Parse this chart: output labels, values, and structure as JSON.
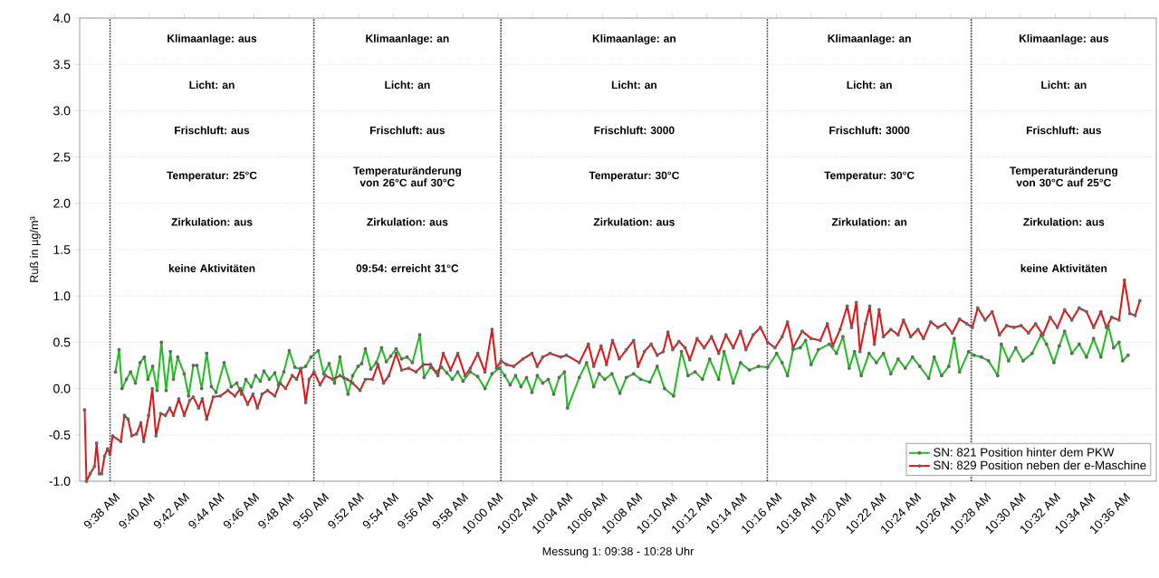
{
  "chart_data": {
    "type": "line",
    "xlabel": "Messung 1: 09:38 - 10:28 Uhr",
    "ylabel": "Ruß in µg/m³",
    "xlim": [
      9.6,
      10.63
    ],
    "ylim": [
      -1.0,
      4.0
    ],
    "xticks": [
      {
        "value": 9.6333,
        "label": "9:38 AM"
      },
      {
        "value": 9.6667,
        "label": "9:40 AM"
      },
      {
        "value": 9.7,
        "label": "9:42 AM"
      },
      {
        "value": 9.7333,
        "label": "9:44 AM"
      },
      {
        "value": 9.7667,
        "label": "9:46 AM"
      },
      {
        "value": 9.8,
        "label": "9:48 AM"
      },
      {
        "value": 9.8333,
        "label": "9:50 AM"
      },
      {
        "value": 9.8667,
        "label": "9:52 AM"
      },
      {
        "value": 9.9,
        "label": "9:54 AM"
      },
      {
        "value": 9.9333,
        "label": "9:56 AM"
      },
      {
        "value": 9.9667,
        "label": "9:58 AM"
      },
      {
        "value": 10.0,
        "label": "10:00 AM"
      },
      {
        "value": 10.0333,
        "label": "10:02 AM"
      },
      {
        "value": 10.0667,
        "label": "10:04 AM"
      },
      {
        "value": 10.1,
        "label": "10:06 AM"
      },
      {
        "value": 10.1333,
        "label": "10:08 AM"
      },
      {
        "value": 10.1667,
        "label": "10:10 AM"
      },
      {
        "value": 10.2,
        "label": "10:12 AM"
      },
      {
        "value": 10.2333,
        "label": "10:14 AM"
      },
      {
        "value": 10.2667,
        "label": "10:16 AM"
      },
      {
        "value": 10.3,
        "label": "10:18 AM"
      },
      {
        "value": 10.3333,
        "label": "10:20 AM"
      },
      {
        "value": 10.3667,
        "label": "10:22 AM"
      },
      {
        "value": 10.4,
        "label": "10:24 AM"
      },
      {
        "value": 10.4333,
        "label": "10:26 AM"
      },
      {
        "value": 10.4667,
        "label": "10:28 AM"
      },
      {
        "value": 10.5,
        "label": "10:30 AM"
      },
      {
        "value": 10.5333,
        "label": "10:32 AM"
      },
      {
        "value": 10.5667,
        "label": "10:34 AM"
      },
      {
        "value": 10.6,
        "label": "10:36 AM"
      }
    ],
    "yticks": [
      {
        "value": -1.0,
        "label": "-1.0"
      },
      {
        "value": -0.5,
        "label": "-0.5"
      },
      {
        "value": 0.0,
        "label": "0.0"
      },
      {
        "value": 0.5,
        "label": "0.5"
      },
      {
        "value": 1.0,
        "label": "1.0"
      },
      {
        "value": 1.5,
        "label": "1.5"
      },
      {
        "value": 2.0,
        "label": "2.0"
      },
      {
        "value": 2.5,
        "label": "2.5"
      },
      {
        "value": 3.0,
        "label": "3.0"
      },
      {
        "value": 3.5,
        "label": "3.5"
      },
      {
        "value": 4.0,
        "label": "4.0"
      }
    ],
    "grid": "y",
    "legend": "bottom right",
    "marker": "circle",
    "line_style": "solid",
    "series": [
      {
        "name": "SN: 821 Position hinter dem PKW",
        "color": "#22bb22",
        "x": [
          9.6342,
          9.6377,
          9.6405,
          9.6447,
          9.6487,
          9.6533,
          9.6578,
          9.6618,
          9.6653,
          9.6698,
          9.674,
          9.6782,
          9.6827,
          9.6868,
          9.6897,
          9.6938,
          9.7,
          9.7042,
          9.7087,
          9.7122,
          9.7167,
          9.7215,
          9.726,
          9.7305,
          9.7382,
          9.745,
          9.7503,
          9.7548,
          9.759,
          9.7642,
          9.7683,
          9.7728,
          9.7763,
          9.7815,
          9.7867,
          9.7902,
          9.7953,
          9.8005,
          9.8058,
          9.811,
          9.8162,
          9.8213,
          9.8282,
          9.8335,
          9.8387,
          9.8438,
          9.849,
          9.8525,
          9.8567,
          9.8612,
          9.8663,
          9.8698,
          9.8733,
          9.8785,
          9.8837,
          9.8888,
          9.8933,
          9.8975,
          9.9028,
          9.908,
          9.9132,
          9.9183,
          9.9253,
          9.9295,
          9.9357,
          9.9408,
          9.9462,
          9.9513,
          9.9565,
          9.9617,
          9.9668,
          9.9738,
          9.9808,
          9.9877,
          9.9945,
          10.0015,
          10.0067,
          10.0118,
          10.017,
          10.0222,
          10.0275,
          10.0327,
          10.0378,
          10.043,
          10.0483,
          10.0535,
          10.0587,
          10.0638,
          10.0667,
          10.078,
          10.085,
          10.0918,
          10.097,
          10.1023,
          10.1092,
          10.1168,
          10.123,
          10.13,
          10.1368,
          10.1455,
          10.1525,
          10.1595,
          10.1682,
          10.1757,
          10.182,
          10.1888,
          10.1958,
          10.2027,
          10.2113,
          10.2165,
          10.2253,
          10.2322,
          10.2408,
          10.2495,
          10.2582,
          10.2668,
          10.272,
          10.2772,
          10.2825,
          10.2893,
          10.2945,
          10.2998,
          10.3067,
          10.3172,
          10.324,
          10.3302,
          10.3362,
          10.3413,
          10.3477,
          10.3552,
          10.3622,
          10.369,
          10.376,
          10.383,
          10.3898,
          10.3968,
          10.4037,
          10.4123,
          10.4175,
          10.4245,
          10.4315,
          10.4367,
          10.4418,
          10.4505,
          10.4557,
          10.4627,
          10.4695,
          10.4782,
          10.4817,
          10.4887,
          10.4955,
          10.5025,
          10.5112,
          10.5198,
          10.525,
          10.532,
          10.5372,
          10.5423,
          10.5492,
          10.5562,
          10.5632,
          10.57,
          10.577,
          10.584,
          10.5892,
          10.5943,
          10.5978,
          10.603
        ],
        "values": [
          0.18,
          0.42,
          0.0,
          0.1,
          0.18,
          0.06,
          0.28,
          0.34,
          0.1,
          0.24,
          -0.02,
          0.5,
          -0.02,
          0.4,
          0.1,
          0.34,
          0.16,
          -0.08,
          0.25,
          0.25,
          0.0,
          0.38,
          0.02,
          -0.04,
          0.28,
          0.02,
          0.06,
          -0.06,
          0.1,
          0.02,
          0.14,
          0.08,
          0.19,
          0.1,
          0.17,
          0.04,
          0.18,
          0.41,
          0.23,
          0.21,
          0.24,
          0.34,
          0.41,
          0.16,
          0.27,
          0.06,
          0.34,
          0.12,
          -0.06,
          0.14,
          0.24,
          0.27,
          0.43,
          0.21,
          0.28,
          0.44,
          0.29,
          0.35,
          0.43,
          0.32,
          0.34,
          0.28,
          0.58,
          0.12,
          0.23,
          0.18,
          0.23,
          0.17,
          0.1,
          0.18,
          0.08,
          0.18,
          0.13,
          0.0,
          0.16,
          0.22,
          0.14,
          0.04,
          0.14,
          0.02,
          0.12,
          -0.04,
          0.14,
          0.06,
          0.1,
          -0.06,
          0.12,
          0.18,
          -0.21,
          0.12,
          0.28,
          0.02,
          0.16,
          0.1,
          0.16,
          -0.05,
          0.12,
          0.16,
          0.1,
          0.07,
          0.24,
          0.0,
          -0.08,
          0.4,
          0.14,
          0.18,
          0.1,
          0.32,
          0.1,
          0.4,
          0.06,
          0.28,
          0.2,
          0.24,
          0.23,
          0.38,
          0.28,
          0.14,
          0.42,
          0.44,
          0.52,
          0.26,
          0.42,
          0.48,
          0.38,
          0.56,
          0.22,
          0.4,
          0.14,
          0.38,
          0.28,
          0.38,
          0.16,
          0.32,
          0.22,
          0.34,
          0.24,
          0.11,
          0.34,
          0.14,
          0.24,
          0.54,
          0.18,
          0.4,
          0.36,
          0.34,
          0.3,
          0.14,
          0.48,
          0.3,
          0.44,
          0.3,
          0.38,
          0.58,
          0.48,
          0.28,
          0.46,
          0.62,
          0.38,
          0.48,
          0.34,
          0.54,
          0.34,
          0.68,
          0.44,
          0.5,
          0.3,
          0.36
        ]
      },
      {
        "name": "SN: 829 Position neben der e-Maschine",
        "color": "#e01414",
        "x": [
          9.6047,
          9.6065,
          9.61,
          9.6142,
          9.6162,
          9.6187,
          9.621,
          9.6238,
          9.6267,
          9.629,
          9.6315,
          9.6393,
          9.6428,
          9.6463,
          9.6498,
          9.6543,
          9.6585,
          9.6612,
          9.666,
          9.6695,
          9.673,
          9.6775,
          9.682,
          9.6862,
          9.6897,
          9.6948,
          9.7,
          9.7052,
          9.7087,
          9.7138,
          9.7173,
          9.7215,
          9.7278,
          9.7347,
          9.7417,
          9.7485,
          9.7537,
          9.7607,
          9.7658,
          9.77,
          9.7745,
          9.7797,
          9.7867,
          9.7918,
          9.797,
          9.8033,
          9.8075,
          9.8117,
          9.8162,
          9.8195,
          9.8242,
          9.83,
          9.8352,
          9.8422,
          9.849,
          9.856,
          9.8612,
          9.8682,
          9.8733,
          9.8802,
          9.8853,
          9.8907,
          9.8958,
          9.9028,
          9.908,
          9.9148,
          9.9218,
          9.9288,
          9.9357,
          9.9427,
          9.9478,
          9.9548,
          9.9617,
          9.9687,
          9.9738,
          9.9808,
          9.9877,
          9.9945,
          9.9987,
          10.0032,
          10.0083,
          10.0153,
          10.024,
          10.0327,
          10.0378,
          10.043,
          10.05,
          10.0603,
          10.0655,
          10.078,
          10.0867,
          10.0918,
          10.0988,
          10.104,
          10.1098,
          10.1162,
          10.123,
          10.13,
          10.1342,
          10.1403,
          10.1467,
          10.1525,
          10.1583,
          10.1628,
          10.1673,
          10.1733,
          10.1792,
          10.1837,
          10.1907,
          10.1975,
          10.2045,
          10.2113,
          10.2183,
          10.2253,
          10.2322,
          10.2373,
          10.2443,
          10.2513,
          10.2582,
          10.2652,
          10.272,
          10.2772,
          10.2825,
          10.2912,
          10.2998,
          10.3085,
          10.3153,
          10.3205,
          10.3275,
          10.3343,
          10.3385,
          10.343,
          10.3465,
          10.3517,
          10.3558,
          10.3603,
          10.3648,
          10.369,
          10.376,
          10.383,
          10.3882,
          10.395,
          10.402,
          10.4072,
          10.4142,
          10.421,
          10.428,
          10.4348,
          10.4418,
          10.4487,
          10.454,
          10.4592,
          10.4662,
          10.473,
          10.48,
          10.4868,
          10.4938,
          10.5007,
          10.5077,
          10.5145,
          10.5215,
          10.5285,
          10.5353,
          10.5423,
          10.5492,
          10.5562,
          10.5632,
          10.57,
          10.577,
          10.5822,
          10.5873,
          10.5943,
          10.5995,
          10.6047,
          10.6098,
          10.6143
        ],
        "values": [
          -0.23,
          -1.0,
          -0.92,
          -0.84,
          -0.59,
          -0.92,
          -0.92,
          -0.73,
          -0.65,
          -0.71,
          -0.51,
          -0.57,
          -0.29,
          -0.33,
          -0.51,
          -0.49,
          -0.37,
          -0.57,
          -0.29,
          0.0,
          -0.51,
          -0.27,
          -0.29,
          -0.21,
          -0.29,
          -0.11,
          -0.29,
          -0.13,
          -0.09,
          -0.21,
          -0.11,
          -0.33,
          -0.09,
          -0.08,
          -0.02,
          -0.08,
          0.0,
          -0.17,
          -0.06,
          -0.21,
          -0.06,
          -0.02,
          -0.08,
          0.06,
          0.0,
          0.14,
          0.1,
          0.22,
          -0.15,
          0.1,
          0.18,
          0.04,
          0.14,
          0.1,
          0.14,
          0.1,
          0.06,
          -0.02,
          0.1,
          0.1,
          0.26,
          0.06,
          0.14,
          0.38,
          0.2,
          0.22,
          0.18,
          0.26,
          0.26,
          0.14,
          0.38,
          0.2,
          0.38,
          0.14,
          0.22,
          0.38,
          0.18,
          0.64,
          0.22,
          0.3,
          0.26,
          0.24,
          0.32,
          0.38,
          0.24,
          0.34,
          0.38,
          0.34,
          0.36,
          0.28,
          0.48,
          0.24,
          0.46,
          0.26,
          0.52,
          0.32,
          0.42,
          0.52,
          0.24,
          0.4,
          0.48,
          0.36,
          0.4,
          0.61,
          0.42,
          0.51,
          0.44,
          0.31,
          0.54,
          0.44,
          0.56,
          0.38,
          0.58,
          0.44,
          0.62,
          0.42,
          0.58,
          0.66,
          0.5,
          0.44,
          0.56,
          0.72,
          0.44,
          0.62,
          0.54,
          0.52,
          0.7,
          0.46,
          0.64,
          0.89,
          0.66,
          0.93,
          0.4,
          0.7,
          0.89,
          0.48,
          0.85,
          0.56,
          0.64,
          0.58,
          0.74,
          0.56,
          0.64,
          0.54,
          0.72,
          0.66,
          0.7,
          0.6,
          0.75,
          0.7,
          0.66,
          0.87,
          0.74,
          0.83,
          0.58,
          0.68,
          0.66,
          0.68,
          0.6,
          0.7,
          0.58,
          0.77,
          0.66,
          0.85,
          0.74,
          0.87,
          0.83,
          0.66,
          0.83,
          0.66,
          0.77,
          0.74,
          1.17,
          0.81,
          0.79,
          0.95
        ]
      }
    ],
    "ref_lines": [
      {
        "axis": "x",
        "value": 9.629,
        "line_style": "dotted"
      },
      {
        "axis": "x",
        "value": 9.824,
        "line_style": "dotted"
      },
      {
        "axis": "x",
        "value": 10.003,
        "line_style": "dotted"
      },
      {
        "axis": "x",
        "value": 10.258,
        "line_style": "dotted"
      },
      {
        "axis": "x",
        "value": 10.453,
        "line_style": "dotted"
      }
    ],
    "annotations": [
      "Klimaanlage: aus",
      "Licht: an",
      "Frischluft: aus",
      "Temperatur: 25°C",
      "Zirkulation: aus",
      "keine Aktivitäten",
      "Klimaanlage: an",
      "Licht: an",
      "Frischluft: aus",
      "Temperaturänderung von 26°C auf 30°C",
      "Zirkulation: aus",
      "09:54: erreicht 31°C",
      "Klimaanlage: an",
      "Licht: an",
      "Frischluft: 3000",
      "Temperatur: 30°C",
      "Zirkulation: aus",
      "Klimaanlage: an",
      "Licht: an",
      "Frischluft: 3000",
      "Temperatur: 30°C",
      "Zirkulation: an",
      "Klimaanlage: aus",
      "Licht: an",
      "Frischluft: aus",
      "Temperaturänderung von 30°C auf 25°C",
      "Zirkulation: aus",
      "keine Aktivitäten"
    ]
  }
}
